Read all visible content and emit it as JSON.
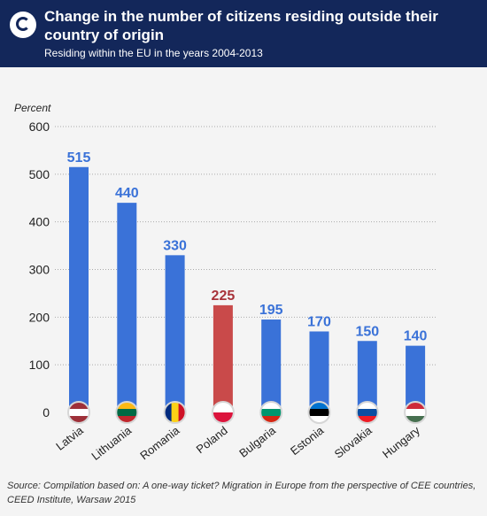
{
  "header": {
    "title": "Change in the number of citizens residing outside their country of origin",
    "subtitle": "Residing within the EU in the years 2004-2013"
  },
  "source": "Source: Compilation based on: A one-way ticket? Migration in Europe from the perspective of CEE countries, CEED Institute, Warsaw 2015",
  "colors": {
    "header_bg": "#13275a",
    "bar": "#3a72d8",
    "highlight_bar": "#c94a4a",
    "label": "#3a72d8",
    "highlight_label": "#a8333a",
    "grid": "#aaaaaa"
  },
  "chart_data": {
    "type": "bar",
    "ylabel": "Percent",
    "ylim": [
      0,
      600
    ],
    "yticks": [
      0,
      100,
      200,
      300,
      400,
      500,
      600
    ],
    "grid": true,
    "categories": [
      "Latvia",
      "Lithuania",
      "Romania",
      "Poland",
      "Bulgaria",
      "Estonia",
      "Slovakia",
      "Hungary"
    ],
    "values": [
      515,
      440,
      330,
      225,
      195,
      170,
      150,
      140
    ],
    "highlight": "Poland",
    "flags": [
      {
        "country": "Latvia",
        "stripes": "horizontal",
        "colors": [
          "#9e3039",
          "#ffffff",
          "#9e3039"
        ]
      },
      {
        "country": "Lithuania",
        "stripes": "horizontal",
        "colors": [
          "#fdb913",
          "#006a44",
          "#c1272d"
        ]
      },
      {
        "country": "Romania",
        "stripes": "vertical",
        "colors": [
          "#002b7f",
          "#fcd116",
          "#ce1126"
        ]
      },
      {
        "country": "Poland",
        "stripes": "horizontal",
        "colors": [
          "#ffffff",
          "#dc143c"
        ]
      },
      {
        "country": "Bulgaria",
        "stripes": "horizontal",
        "colors": [
          "#ffffff",
          "#00966e",
          "#d62612"
        ]
      },
      {
        "country": "Estonia",
        "stripes": "horizontal",
        "colors": [
          "#0072ce",
          "#000000",
          "#ffffff"
        ]
      },
      {
        "country": "Slovakia",
        "stripes": "horizontal",
        "colors": [
          "#ffffff",
          "#0b4ea2",
          "#ee1c25"
        ]
      },
      {
        "country": "Hungary",
        "stripes": "horizontal",
        "colors": [
          "#ce2939",
          "#ffffff",
          "#477050"
        ]
      }
    ]
  }
}
